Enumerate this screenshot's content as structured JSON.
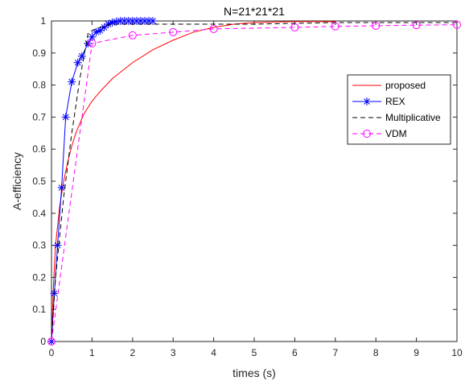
{
  "chart_data": {
    "type": "line",
    "title": "N=21*21*21",
    "xlabel": "times (s)",
    "ylabel": "A-efficiency",
    "xlim": [
      0,
      10
    ],
    "ylim": [
      0,
      1
    ],
    "xticks": [
      0,
      1,
      2,
      3,
      4,
      5,
      6,
      7,
      8,
      9,
      10
    ],
    "yticks": [
      0,
      0.1,
      0.2,
      0.3,
      0.4,
      0.5,
      0.6,
      0.7,
      0.8,
      0.9,
      1
    ],
    "xtick_labels": [
      "0",
      "1",
      "2",
      "3",
      "4",
      "5",
      "6",
      "7",
      "8",
      "9",
      "10"
    ],
    "ytick_labels": [
      "0",
      "0.1",
      "0.2",
      "0.3",
      "0.4",
      "0.5",
      "0.6",
      "0.7",
      "0.8",
      "0.9",
      "1"
    ],
    "grid": false,
    "legend_position": "right",
    "series": [
      {
        "name": "proposed",
        "color": "#ff0000",
        "line_style": "solid",
        "marker": "none",
        "x": [
          0,
          0.05,
          0.1,
          0.2,
          0.3,
          0.4,
          0.5,
          0.6,
          0.7,
          0.8,
          0.9,
          1.0,
          1.2,
          1.5,
          2.0,
          2.5,
          3.0,
          3.5,
          4.0,
          4.5,
          5.0,
          5.5,
          6.0,
          7.0
        ],
        "y": [
          0,
          0.18,
          0.3,
          0.42,
          0.5,
          0.56,
          0.61,
          0.65,
          0.68,
          0.71,
          0.73,
          0.75,
          0.78,
          0.82,
          0.87,
          0.91,
          0.94,
          0.965,
          0.98,
          0.99,
          0.995,
          0.997,
          0.998,
          0.998
        ]
      },
      {
        "name": "REX",
        "color": "#0000ff",
        "line_style": "solid",
        "marker": "asterisk",
        "x": [
          0,
          0.07,
          0.15,
          0.25,
          0.35,
          0.5,
          0.65,
          0.75,
          0.9,
          1.0,
          1.1,
          1.2,
          1.3,
          1.4,
          1.5,
          1.6,
          1.7,
          1.8,
          1.9,
          2.0,
          2.1,
          2.2,
          2.3,
          2.4,
          2.5
        ],
        "y": [
          0,
          0.15,
          0.3,
          0.48,
          0.7,
          0.81,
          0.87,
          0.89,
          0.93,
          0.95,
          0.965,
          0.97,
          0.98,
          0.99,
          0.995,
          0.998,
          1.0,
          1.0,
          1.0,
          1.0,
          1.0,
          1.0,
          1.0,
          1.0,
          1.0
        ]
      },
      {
        "name": "Multiplicative",
        "color": "#000000",
        "line_style": "dashed",
        "marker": "none",
        "x": [
          0,
          0.1,
          0.3,
          0.5,
          0.7,
          0.9,
          1.0,
          1.2,
          1.5,
          2.0,
          3.0,
          5.0,
          7.0,
          10.0
        ],
        "y": [
          0,
          0.2,
          0.45,
          0.65,
          0.82,
          0.96,
          0.97,
          0.98,
          0.99,
          0.99,
          0.99,
          0.99,
          0.995,
          0.995
        ]
      },
      {
        "name": "VDM",
        "color": "#ff00ff",
        "line_style": "dashed",
        "marker": "circle",
        "x": [
          0,
          1,
          2,
          3,
          4,
          6,
          7,
          8,
          9,
          10
        ],
        "y": [
          0,
          0.93,
          0.955,
          0.965,
          0.975,
          0.98,
          0.983,
          0.985,
          0.987,
          0.988
        ]
      }
    ]
  }
}
